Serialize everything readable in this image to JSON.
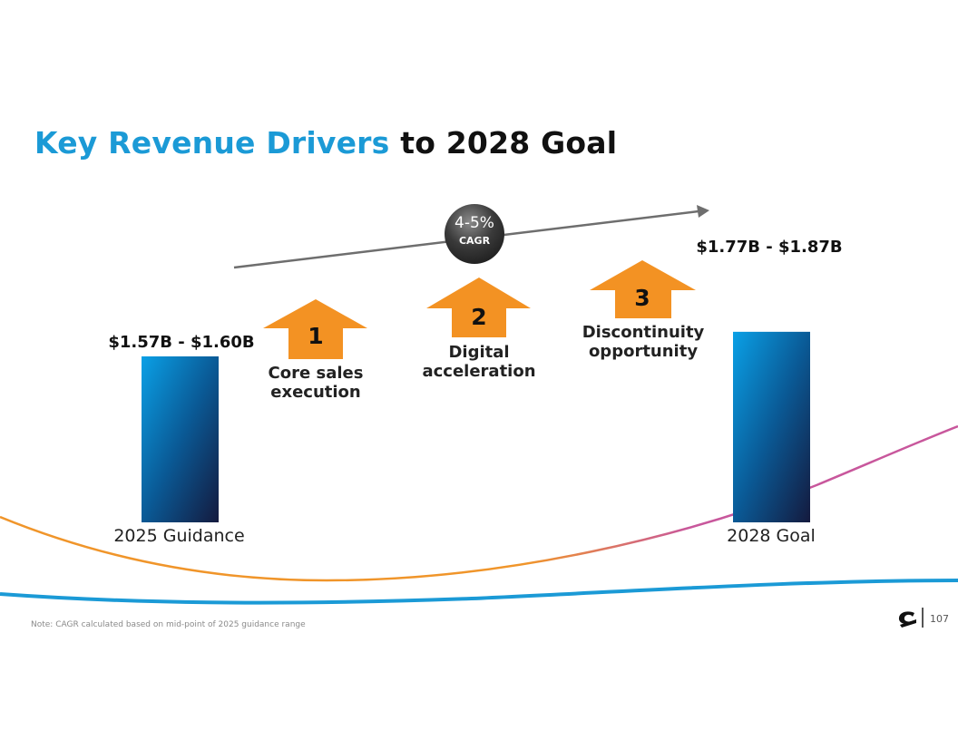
{
  "title": {
    "highlight": "Key Revenue Drivers",
    "rest": "to 2028 Goal"
  },
  "cagr": {
    "value": "4-5%",
    "label": "CAGR"
  },
  "drivers": [
    {
      "number": "1",
      "line1": "Core sales",
      "line2": "execution"
    },
    {
      "number": "2",
      "line1": "Digital",
      "line2": "acceleration"
    },
    {
      "number": "3",
      "line1": "Discontinuity",
      "line2": "opportunity"
    }
  ],
  "chart_data": {
    "type": "bar",
    "categories": [
      "2025 Guidance",
      "2028 Goal"
    ],
    "value_labels": [
      "$1.57B - $1.60B",
      "$1.77B - $1.87B"
    ],
    "series": [
      {
        "values": [
          1.585,
          1.82
        ]
      }
    ],
    "value_ranges": [
      [
        1.57,
        1.6
      ],
      [
        1.77,
        1.87
      ]
    ],
    "unit": "$B",
    "grid": false,
    "colors": {
      "bar_top": "#0aa0e6",
      "bar_bottom": "#141a3e",
      "arrow": "#f39223",
      "trend": "#6e6e6e"
    }
  },
  "footnote": "Note: CAGR calculated based on mid-point of 2025 guidance range",
  "page_number": "107",
  "logo": "company-logo",
  "colors": {
    "title_accent": "#1b9ad6",
    "wave_orange": "#f0952a",
    "wave_blue": "#1b9ad6",
    "wave_pink": "#c8579c"
  }
}
